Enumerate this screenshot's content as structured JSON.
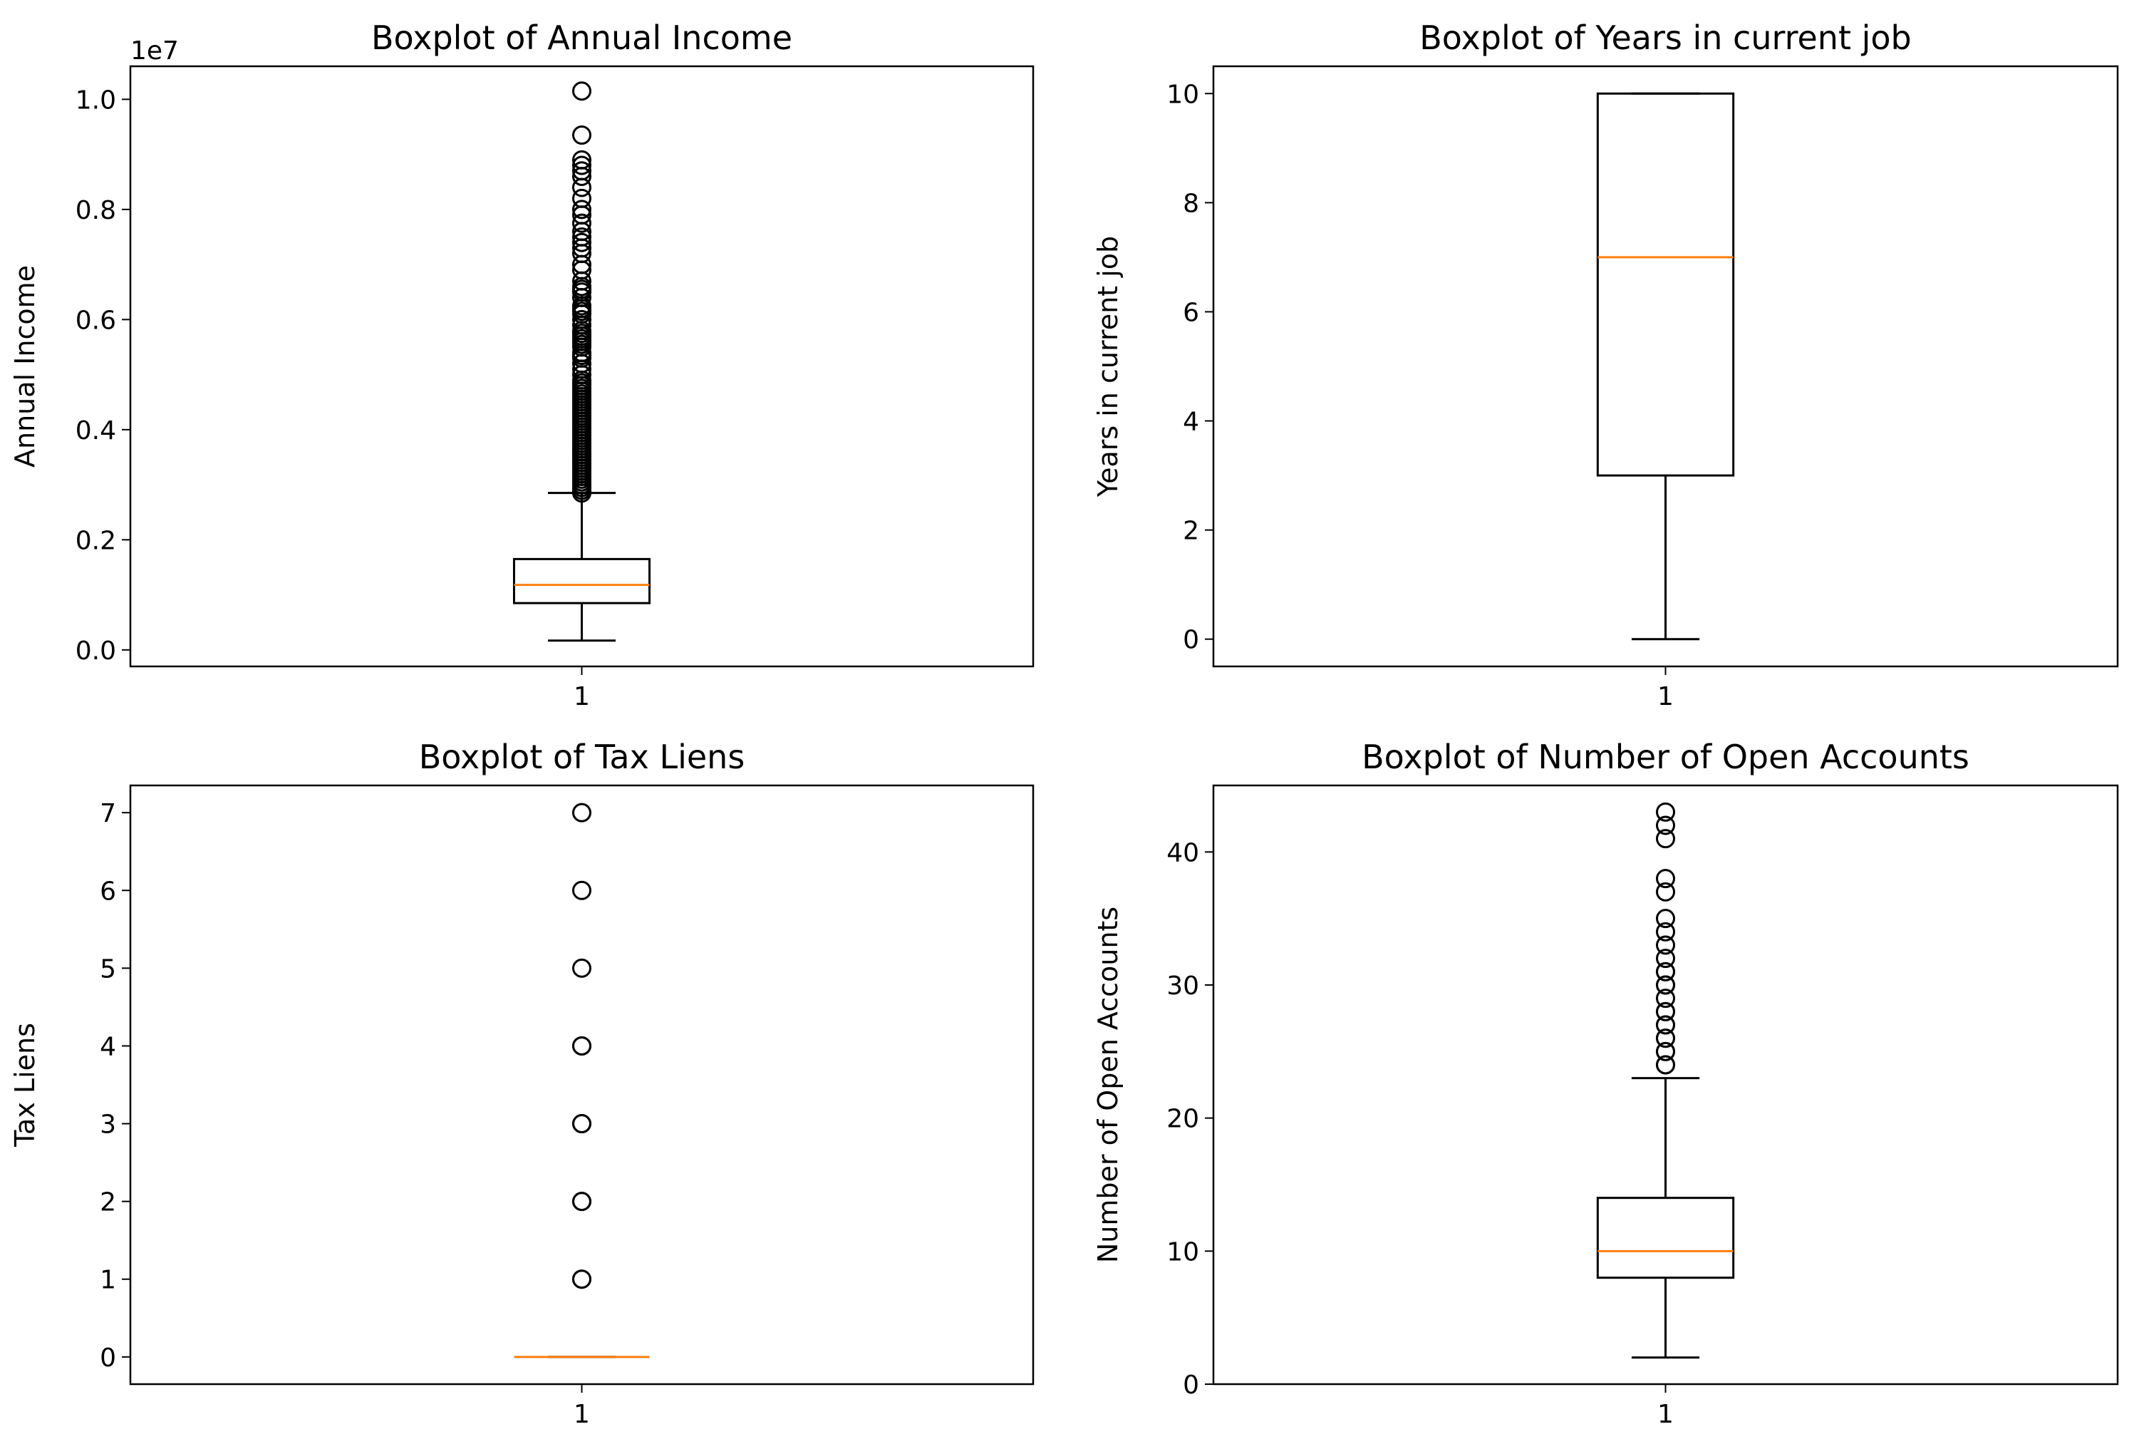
{
  "chart_data": [
    {
      "type": "boxplot",
      "title": "Boxplot of Annual Income",
      "xlabel": "",
      "ylabel": "Annual Income",
      "offset_text": "1e7",
      "categories": [
        "1"
      ],
      "ylim": [
        -0.03,
        1.06
      ],
      "yticks": [
        0.0,
        0.2,
        0.4,
        0.6,
        0.8,
        1.0
      ],
      "ytick_labels": [
        "0.0",
        "0.2",
        "0.4",
        "0.6",
        "0.8",
        "1.0"
      ],
      "box": {
        "whisker_low": 0.017,
        "q1": 0.085,
        "median": 0.118,
        "q3": 0.165,
        "whisker_high": 0.285
      },
      "outliers": [
        0.285,
        0.29,
        0.295,
        0.3,
        0.305,
        0.31,
        0.315,
        0.32,
        0.325,
        0.33,
        0.335,
        0.34,
        0.345,
        0.35,
        0.355,
        0.36,
        0.365,
        0.37,
        0.375,
        0.38,
        0.385,
        0.39,
        0.395,
        0.4,
        0.405,
        0.41,
        0.415,
        0.42,
        0.425,
        0.43,
        0.435,
        0.44,
        0.445,
        0.45,
        0.455,
        0.46,
        0.465,
        0.47,
        0.475,
        0.48,
        0.485,
        0.49,
        0.5,
        0.51,
        0.52,
        0.53,
        0.535,
        0.54,
        0.55,
        0.555,
        0.56,
        0.565,
        0.57,
        0.575,
        0.58,
        0.59,
        0.6,
        0.61,
        0.615,
        0.62,
        0.625,
        0.64,
        0.65,
        0.655,
        0.66,
        0.67,
        0.69,
        0.7,
        0.72,
        0.73,
        0.74,
        0.75,
        0.76,
        0.775,
        0.79,
        0.8,
        0.82,
        0.84,
        0.86,
        0.87,
        0.88,
        0.89,
        0.935,
        1.015
      ]
    },
    {
      "type": "boxplot",
      "title": "Boxplot of Years in current job",
      "xlabel": "",
      "ylabel": "Years in current job",
      "categories": [
        "1"
      ],
      "ylim": [
        -0.5,
        10.5
      ],
      "yticks": [
        0,
        2,
        4,
        6,
        8,
        10
      ],
      "ytick_labels": [
        "0",
        "2",
        "4",
        "6",
        "8",
        "10"
      ],
      "box": {
        "whisker_low": 0,
        "q1": 3,
        "median": 7,
        "q3": 10,
        "whisker_high": 10
      },
      "outliers": []
    },
    {
      "type": "boxplot",
      "title": "Boxplot of Tax Liens",
      "xlabel": "",
      "ylabel": "Tax Liens",
      "categories": [
        "1"
      ],
      "ylim": [
        -0.35,
        7.35
      ],
      "yticks": [
        0,
        1,
        2,
        3,
        4,
        5,
        6,
        7
      ],
      "ytick_labels": [
        "0",
        "1",
        "2",
        "3",
        "4",
        "5",
        "6",
        "7"
      ],
      "box": {
        "whisker_low": 0,
        "q1": 0,
        "median": 0,
        "q3": 0,
        "whisker_high": 0
      },
      "outliers": [
        1,
        1,
        2,
        2,
        3,
        3,
        4,
        4,
        5,
        6,
        7
      ]
    },
    {
      "type": "boxplot",
      "title": "Boxplot of Number of Open Accounts",
      "xlabel": "",
      "ylabel": "Number of Open Accounts",
      "categories": [
        "1"
      ],
      "ylim": [
        0,
        45
      ],
      "yticks": [
        0,
        10,
        20,
        30,
        40
      ],
      "ytick_labels": [
        "0",
        "10",
        "20",
        "30",
        "40"
      ],
      "box": {
        "whisker_low": 2,
        "q1": 8,
        "median": 10,
        "q3": 14,
        "whisker_high": 23
      },
      "outliers": [
        24,
        24,
        25,
        25,
        26,
        26,
        27,
        27,
        28,
        28,
        29,
        30,
        30,
        31,
        31,
        32,
        33,
        34,
        35,
        37,
        38,
        41,
        42,
        43
      ]
    }
  ],
  "colors": {
    "median": "#ff7f0e",
    "box": "#000000",
    "flier": "#000000",
    "background": "#ffffff"
  }
}
